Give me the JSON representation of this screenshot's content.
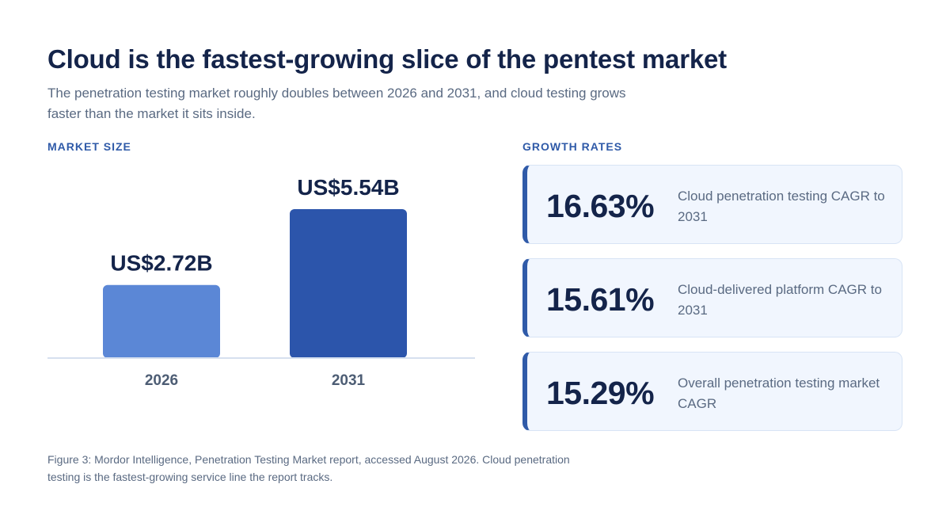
{
  "header": {
    "title": "Cloud is the fastest-growing slice of the pentest market",
    "subtitle": "The penetration testing market roughly doubles between 2026 and 2031, and cloud testing grows faster than the market it sits inside."
  },
  "market_size": {
    "label": "MARKET SIZE"
  },
  "growth_rates": {
    "label": "GROWTH RATES",
    "cards": [
      {
        "value": "16.63%",
        "description": "Cloud penetration testing CAGR to 2031"
      },
      {
        "value": "15.61%",
        "description": "Cloud-delivered platform CAGR to 2031"
      },
      {
        "value": "15.29%",
        "description": "Overall penetration testing market CAGR"
      }
    ]
  },
  "footnote": "Figure 3: Mordor Intelligence, Penetration Testing Market report, accessed August 2026. Cloud penetration testing is the fastest-growing service line the report tracks.",
  "chart_data": {
    "type": "bar",
    "title": "MARKET SIZE",
    "categories": [
      "2026",
      "2031"
    ],
    "values": [
      2.72,
      5.54
    ],
    "value_labels": [
      "US$2.72B",
      "US$5.54B"
    ],
    "colors": [
      "#5b87d6",
      "#2c55ab"
    ],
    "xlabel": "",
    "ylabel": "",
    "ylim": [
      0,
      5.54
    ],
    "grid": false,
    "legend": "none"
  }
}
